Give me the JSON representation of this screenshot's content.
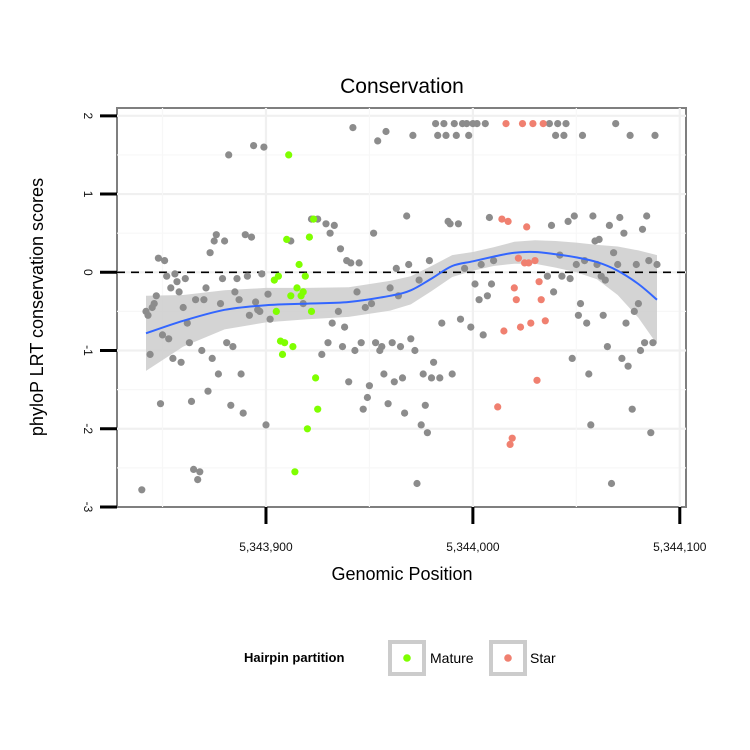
{
  "chart_data": {
    "type": "scatter",
    "title": "Conservation",
    "xlabel": "Genomic Position",
    "ylabel": "phyloP LRT conservation scores",
    "xlim": [
      5343828,
      5344103
    ],
    "ylim": [
      -3,
      2.1
    ],
    "x_ticks": [
      5343900,
      5344000,
      5344100
    ],
    "x_tick_labels": [
      "5,343,900",
      "5,344,000",
      "5,344,100"
    ],
    "y_ticks": [
      -3,
      -2,
      -1,
      0,
      1,
      2
    ],
    "y_tick_labels": [
      "-3",
      "-2",
      "-1",
      "0",
      "1",
      "2"
    ],
    "reference_line": {
      "y": 0,
      "style": "dashed"
    },
    "grid": true,
    "legend": {
      "title": "Hairpin partition",
      "position": "bottom",
      "entries": [
        {
          "label": "Mature",
          "color": "#7FFF00"
        },
        {
          "label": "Star",
          "color": "#F08070"
        }
      ]
    },
    "colors": {
      "other": "#8c8c8c",
      "mature": "#7FFF00",
      "star": "#F08070",
      "smooth": "#3366FF",
      "band": "#cccccc"
    },
    "smooth": {
      "x": [
        5343842,
        5343860,
        5343880,
        5343900,
        5343920,
        5343940,
        5343960,
        5343970,
        5343980,
        5343990,
        5344000,
        5344010,
        5344020,
        5344030,
        5344040,
        5344050,
        5344060,
        5344070,
        5344080,
        5344089
      ],
      "y": [
        -0.78,
        -0.62,
        -0.48,
        -0.42,
        -0.4,
        -0.38,
        -0.3,
        -0.23,
        -0.08,
        0.08,
        0.14,
        0.2,
        0.25,
        0.26,
        0.23,
        0.19,
        0.13,
        0.02,
        -0.15,
        -0.35
      ],
      "lower": [
        -1.26,
        -0.95,
        -0.73,
        -0.64,
        -0.6,
        -0.57,
        -0.49,
        -0.41,
        -0.24,
        -0.06,
        0.02,
        0.08,
        0.11,
        0.11,
        0.06,
        0.0,
        -0.09,
        -0.29,
        -0.58,
        -0.92
      ],
      "upper": [
        -0.3,
        -0.29,
        -0.23,
        -0.2,
        -0.2,
        -0.19,
        -0.11,
        -0.05,
        0.08,
        0.22,
        0.26,
        0.32,
        0.39,
        0.41,
        0.4,
        0.38,
        0.35,
        0.33,
        0.28,
        0.22
      ]
    },
    "series": [
      {
        "key": "other",
        "points": [
          [
            5343840,
            -2.78
          ],
          [
            5343842,
            -0.5
          ],
          [
            5343843,
            -0.55
          ],
          [
            5343844,
            -1.05
          ],
          [
            5343845,
            -0.45
          ],
          [
            5343846,
            -0.4
          ],
          [
            5343847,
            -0.3
          ],
          [
            5343848,
            0.18
          ],
          [
            5343849,
            -1.68
          ],
          [
            5343850,
            -0.8
          ],
          [
            5343851,
            0.15
          ],
          [
            5343852,
            -0.05
          ],
          [
            5343853,
            -0.85
          ],
          [
            5343854,
            -0.2
          ],
          [
            5343855,
            -1.1
          ],
          [
            5343856,
            -0.02
          ],
          [
            5343857,
            -0.12
          ],
          [
            5343858,
            -0.25
          ],
          [
            5343859,
            -1.15
          ],
          [
            5343860,
            -0.45
          ],
          [
            5343861,
            -0.08
          ],
          [
            5343862,
            -0.65
          ],
          [
            5343863,
            -0.9
          ],
          [
            5343864,
            -1.65
          ],
          [
            5343865,
            -2.52
          ],
          [
            5343866,
            -0.35
          ],
          [
            5343867,
            -2.65
          ],
          [
            5343868,
            -2.55
          ],
          [
            5343869,
            -1.0
          ],
          [
            5343870,
            -0.35
          ],
          [
            5343871,
            -0.2
          ],
          [
            5343872,
            -1.52
          ],
          [
            5343873,
            0.25
          ],
          [
            5343874,
            -1.1
          ],
          [
            5343875,
            0.4
          ],
          [
            5343876,
            0.48
          ],
          [
            5343877,
            -1.3
          ],
          [
            5343878,
            -0.4
          ],
          [
            5343879,
            -0.08
          ],
          [
            5343880,
            0.4
          ],
          [
            5343881,
            -0.9
          ],
          [
            5343882,
            1.5
          ],
          [
            5343883,
            -1.7
          ],
          [
            5343884,
            -0.95
          ],
          [
            5343885,
            -0.25
          ],
          [
            5343886,
            -0.08
          ],
          [
            5343887,
            -0.35
          ],
          [
            5343888,
            -1.3
          ],
          [
            5343889,
            -1.8
          ],
          [
            5343890,
            0.48
          ],
          [
            5343891,
            -0.05
          ],
          [
            5343892,
            -0.55
          ],
          [
            5343893,
            0.45
          ],
          [
            5343894,
            1.62
          ],
          [
            5343895,
            -0.38
          ],
          [
            5343896,
            -0.48
          ],
          [
            5343897,
            -0.5
          ],
          [
            5343898,
            -0.02
          ],
          [
            5343899,
            1.6
          ],
          [
            5343900,
            -1.95
          ],
          [
            5343901,
            -0.28
          ],
          [
            5343902,
            -0.6
          ],
          [
            5343912,
            0.4
          ],
          [
            5343918,
            -0.4
          ],
          [
            5343922,
            0.68
          ],
          [
            5343925,
            0.68
          ],
          [
            5343927,
            -1.05
          ],
          [
            5343929,
            0.62
          ],
          [
            5343930,
            -0.9
          ],
          [
            5343931,
            0.5
          ],
          [
            5343932,
            -0.65
          ],
          [
            5343933,
            0.6
          ],
          [
            5343935,
            -0.5
          ],
          [
            5343936,
            0.3
          ],
          [
            5343937,
            -0.95
          ],
          [
            5343938,
            -0.7
          ],
          [
            5343939,
            0.15
          ],
          [
            5343940,
            -1.4
          ],
          [
            5343941,
            0.12
          ],
          [
            5343942,
            1.85
          ],
          [
            5343943,
            -1.0
          ],
          [
            5343944,
            -0.25
          ],
          [
            5343945,
            0.12
          ],
          [
            5343946,
            -0.9
          ],
          [
            5343947,
            -1.75
          ],
          [
            5343948,
            -0.45
          ],
          [
            5343949,
            -1.6
          ],
          [
            5343950,
            -1.45
          ],
          [
            5343951,
            -0.4
          ],
          [
            5343952,
            0.5
          ],
          [
            5343953,
            -0.9
          ],
          [
            5343954,
            1.68
          ],
          [
            5343955,
            -1.0
          ],
          [
            5343956,
            -0.95
          ],
          [
            5343957,
            -1.3
          ],
          [
            5343958,
            1.8
          ],
          [
            5343959,
            -1.68
          ],
          [
            5343960,
            -0.2
          ],
          [
            5343961,
            -0.9
          ],
          [
            5343962,
            -1.4
          ],
          [
            5343963,
            0.05
          ],
          [
            5343964,
            -0.3
          ],
          [
            5343965,
            -0.95
          ],
          [
            5343966,
            -1.35
          ],
          [
            5343967,
            -1.8
          ],
          [
            5343968,
            0.72
          ],
          [
            5343969,
            0.1
          ],
          [
            5343970,
            -0.85
          ],
          [
            5343971,
            1.75
          ],
          [
            5343972,
            -1.0
          ],
          [
            5343973,
            -2.7
          ],
          [
            5343974,
            -0.1
          ],
          [
            5343975,
            -1.95
          ],
          [
            5343976,
            -1.3
          ],
          [
            5343977,
            -1.7
          ],
          [
            5343978,
            -2.05
          ],
          [
            5343979,
            0.15
          ],
          [
            5343980,
            -1.35
          ],
          [
            5343981,
            -1.15
          ],
          [
            5343982,
            1.9
          ],
          [
            5343983,
            1.75
          ],
          [
            5343984,
            -1.35
          ],
          [
            5343985,
            -0.65
          ],
          [
            5343986,
            1.9
          ],
          [
            5343987,
            1.75
          ],
          [
            5343988,
            0.65
          ],
          [
            5343989,
            0.62
          ],
          [
            5343990,
            -1.3
          ],
          [
            5343991,
            1.9
          ],
          [
            5343992,
            1.75
          ],
          [
            5343993,
            0.62
          ],
          [
            5343994,
            -0.6
          ],
          [
            5343995,
            1.9
          ],
          [
            5343996,
            0.05
          ],
          [
            5343997,
            1.9
          ],
          [
            5343998,
            1.75
          ],
          [
            5343999,
            -0.7
          ],
          [
            5344000,
            1.9
          ],
          [
            5344001,
            -0.15
          ],
          [
            5344002,
            1.9
          ],
          [
            5344003,
            -0.35
          ],
          [
            5344004,
            0.1
          ],
          [
            5344005,
            -0.8
          ],
          [
            5344006,
            1.9
          ],
          [
            5344007,
            -0.3
          ],
          [
            5344008,
            0.7
          ],
          [
            5344009,
            -0.15
          ],
          [
            5344010,
            0.15
          ],
          [
            5344036,
            -0.05
          ],
          [
            5344037,
            1.9
          ],
          [
            5344038,
            0.6
          ],
          [
            5344039,
            -0.25
          ],
          [
            5344040,
            1.75
          ],
          [
            5344041,
            1.9
          ],
          [
            5344042,
            0.22
          ],
          [
            5344043,
            -0.05
          ],
          [
            5344044,
            1.75
          ],
          [
            5344045,
            1.9
          ],
          [
            5344046,
            0.65
          ],
          [
            5344047,
            -0.08
          ],
          [
            5344048,
            -1.1
          ],
          [
            5344049,
            0.72
          ],
          [
            5344050,
            0.1
          ],
          [
            5344051,
            -0.55
          ],
          [
            5344052,
            -0.4
          ],
          [
            5344053,
            1.75
          ],
          [
            5344054,
            0.15
          ],
          [
            5344055,
            -0.65
          ],
          [
            5344056,
            -1.3
          ],
          [
            5344057,
            -1.95
          ],
          [
            5344058,
            0.72
          ],
          [
            5344059,
            0.4
          ],
          [
            5344060,
            0.1
          ],
          [
            5344061,
            0.42
          ],
          [
            5344062,
            -0.05
          ],
          [
            5344063,
            -0.55
          ],
          [
            5344064,
            -0.1
          ],
          [
            5344065,
            -0.95
          ],
          [
            5344066,
            0.6
          ],
          [
            5344067,
            -2.7
          ],
          [
            5344068,
            0.25
          ],
          [
            5344069,
            1.9
          ],
          [
            5344070,
            0.1
          ],
          [
            5344071,
            0.7
          ],
          [
            5344072,
            -1.1
          ],
          [
            5344073,
            0.5
          ],
          [
            5344074,
            -0.65
          ],
          [
            5344075,
            -1.2
          ],
          [
            5344076,
            1.75
          ],
          [
            5344077,
            -1.75
          ],
          [
            5344078,
            -0.5
          ],
          [
            5344079,
            0.1
          ],
          [
            5344080,
            -0.4
          ],
          [
            5344081,
            -1.0
          ],
          [
            5344082,
            0.55
          ],
          [
            5344083,
            -0.9
          ],
          [
            5344084,
            0.72
          ],
          [
            5344085,
            0.15
          ],
          [
            5344086,
            -2.05
          ],
          [
            5344087,
            -0.9
          ],
          [
            5344088,
            1.75
          ],
          [
            5344089,
            0.1
          ]
        ]
      },
      {
        "key": "mature",
        "points": [
          [
            5343904,
            -0.1
          ],
          [
            5343905,
            -0.5
          ],
          [
            5343906,
            -0.05
          ],
          [
            5343907,
            -0.88
          ],
          [
            5343908,
            -1.05
          ],
          [
            5343909,
            -0.9
          ],
          [
            5343910,
            0.42
          ],
          [
            5343911,
            1.5
          ],
          [
            5343912,
            -0.3
          ],
          [
            5343913,
            -0.95
          ],
          [
            5343914,
            -2.55
          ],
          [
            5343915,
            -0.2
          ],
          [
            5343916,
            0.1
          ],
          [
            5343917,
            -0.3
          ],
          [
            5343918,
            -0.25
          ],
          [
            5343919,
            -0.05
          ],
          [
            5343920,
            -2.0
          ],
          [
            5343921,
            0.45
          ],
          [
            5343922,
            -0.5
          ],
          [
            5343923,
            0.68
          ],
          [
            5343924,
            -1.35
          ],
          [
            5343925,
            -1.75
          ]
        ]
      },
      {
        "key": "star",
        "points": [
          [
            5344012,
            -1.72
          ],
          [
            5344014,
            0.68
          ],
          [
            5344015,
            -0.75
          ],
          [
            5344016,
            1.9
          ],
          [
            5344017,
            0.65
          ],
          [
            5344018,
            -2.2
          ],
          [
            5344019,
            -2.12
          ],
          [
            5344020,
            -0.2
          ],
          [
            5344021,
            -0.35
          ],
          [
            5344022,
            0.18
          ],
          [
            5344023,
            -0.7
          ],
          [
            5344024,
            1.9
          ],
          [
            5344025,
            0.12
          ],
          [
            5344026,
            0.58
          ],
          [
            5344027,
            0.12
          ],
          [
            5344028,
            -0.65
          ],
          [
            5344029,
            1.9
          ],
          [
            5344030,
            0.15
          ],
          [
            5344031,
            -1.38
          ],
          [
            5344032,
            -0.12
          ],
          [
            5344033,
            -0.35
          ],
          [
            5344034,
            1.9
          ],
          [
            5344035,
            -0.62
          ]
        ]
      }
    ]
  }
}
